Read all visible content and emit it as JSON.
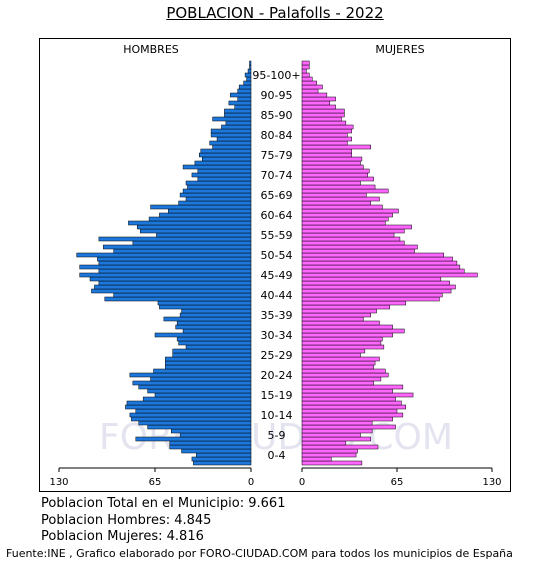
{
  "title": "POBLACION - Palafolls - 2022",
  "stats": {
    "total": "Poblacion Total en el Municipio: 9.661",
    "hombres": "Poblacion Hombres: 4.845",
    "mujeres": "Poblacion Mujeres: 4.816"
  },
  "source": "Fuente:INE , Grafico elaborado por FORO-CIUDAD.COM para todos los municipios de España",
  "watermark": "FORO-CIUDAD.COM",
  "colors": {
    "male": "#1e78dc",
    "female": "#ff66ff",
    "watermark": "#e4e4f0"
  },
  "chart_data": {
    "type": "bar",
    "orientation": "horizontal-pyramid",
    "headers": {
      "left": "HOMBRES",
      "right": "MUJERES"
    },
    "x_ticks_left": [
      "130",
      "65",
      "0"
    ],
    "x_ticks_right": [
      "0",
      "65",
      "130"
    ],
    "xlim": [
      0,
      130
    ],
    "age_labels": [
      "0-4",
      "5-9",
      "10-14",
      "15-19",
      "20-24",
      "25-29",
      "30-34",
      "35-39",
      "40-44",
      "45-49",
      "50-54",
      "55-59",
      "60-64",
      "65-69",
      "70-74",
      "75-79",
      "80-84",
      "85-90",
      "90-95",
      "95-100+"
    ],
    "ages": [
      0,
      1,
      2,
      3,
      4,
      5,
      6,
      7,
      8,
      9,
      10,
      11,
      12,
      13,
      14,
      15,
      16,
      17,
      18,
      19,
      20,
      21,
      22,
      23,
      24,
      25,
      26,
      27,
      28,
      29,
      30,
      31,
      32,
      33,
      34,
      35,
      36,
      37,
      38,
      39,
      40,
      41,
      42,
      43,
      44,
      45,
      46,
      47,
      48,
      49,
      50,
      51,
      52,
      53,
      54,
      55,
      56,
      57,
      58,
      59,
      60,
      61,
      62,
      63,
      64,
      65,
      66,
      67,
      68,
      69,
      70,
      71,
      72,
      73,
      74,
      75,
      76,
      77,
      78,
      79,
      80,
      81,
      82,
      83,
      84,
      85,
      86,
      87,
      88,
      89,
      90,
      91,
      92,
      93,
      94,
      95,
      96,
      97,
      98,
      99,
      100
    ],
    "series": [
      {
        "name": "HOMBRES",
        "values": [
          39,
          40,
          37,
          47,
          55,
          55,
          78,
          48,
          54,
          70,
          76,
          81,
          82,
          78,
          85,
          84,
          73,
          65,
          70,
          76,
          80,
          68,
          82,
          66,
          58,
          58,
          58,
          53,
          53,
          44,
          49,
          50,
          65,
          46,
          51,
          50,
          59,
          48,
          47,
          62,
          63,
          99,
          93,
          108,
          106,
          103,
          109,
          116,
          103,
          116,
          103,
          104,
          118,
          93,
          100,
          80,
          103,
          64,
          75,
          77,
          83,
          69,
          62,
          56,
          68,
          49,
          44,
          48,
          46,
          43,
          44,
          36,
          40,
          36,
          46,
          38,
          33,
          35,
          34,
          26,
          28,
          23,
          27,
          27,
          20,
          17,
          26,
          18,
          18,
          11,
          15,
          9,
          14,
          9,
          8,
          5,
          3,
          4,
          2,
          1,
          1
        ]
      },
      {
        "name": "MUJERES",
        "values": [
          41,
          20,
          37,
          38,
          52,
          30,
          47,
          40,
          48,
          64,
          48,
          62,
          69,
          65,
          71,
          68,
          64,
          76,
          62,
          69,
          49,
          54,
          59,
          57,
          49,
          50,
          53,
          40,
          43,
          56,
          54,
          55,
          62,
          70,
          62,
          53,
          42,
          47,
          51,
          60,
          71,
          94,
          96,
          102,
          105,
          101,
          95,
          120,
          111,
          108,
          106,
          103,
          97,
          77,
          79,
          70,
          67,
          63,
          70,
          75,
          57,
          59,
          62,
          66,
          55,
          47,
          53,
          44,
          59,
          50,
          40,
          49,
          45,
          46,
          42,
          40,
          41,
          34,
          34,
          47,
          31,
          34,
          31,
          34,
          35,
          30,
          27,
          29,
          29,
          23,
          19,
          23,
          17,
          11,
          14,
          10,
          7,
          5,
          3,
          5,
          5
        ]
      }
    ]
  }
}
